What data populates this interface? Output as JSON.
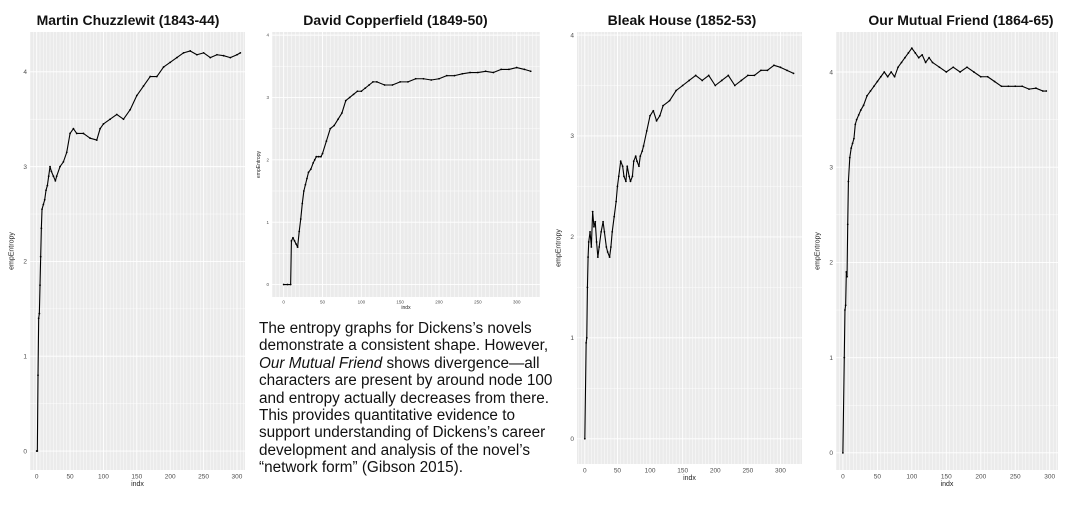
{
  "caption": {
    "part1": "The entropy graphs for Dickens’s novels demonstrate a consistent shape. However, ",
    "italic": "Our Mutual Friend",
    "part2": " shows divergence—all characters are present by around node 100 and entropy actually decreases from there. This provides quantitative evidence to support understanding of Dickens’s career development and analysis of the novel’s “network form” (Gibson 2015)."
  },
  "style": {
    "panel_bg": "#ebebeb",
    "grid": "#ffffff",
    "line": "#000000",
    "tick_text": "#4d4d4d"
  },
  "chart_data": [
    {
      "type": "line",
      "title": "Martin Chuzzlewit (1843-44)",
      "xlabel": "indx",
      "ylabel": "empEntropy",
      "xlim": [
        -10,
        312
      ],
      "ylim": [
        -0.2,
        4.42
      ],
      "xticks": [
        0,
        50,
        100,
        150,
        200,
        250,
        300
      ],
      "yticks": [
        0,
        1,
        2,
        3,
        4
      ],
      "grid": true,
      "series": [
        {
          "x": [
            0,
            1,
            2,
            3,
            4,
            5,
            6,
            7,
            8,
            10,
            12,
            14,
            16,
            18,
            20,
            22,
            25,
            28,
            30,
            35,
            40,
            45,
            50,
            55,
            60,
            70,
            80,
            90,
            95,
            100,
            110,
            120,
            130,
            140,
            150,
            160,
            170,
            180,
            190,
            200,
            210,
            220,
            230,
            240,
            250,
            260,
            270,
            280,
            290,
            300,
            305
          ],
          "y": [
            0,
            0,
            0.8,
            1.4,
            1.45,
            1.75,
            2.05,
            2.35,
            2.55,
            2.6,
            2.65,
            2.75,
            2.8,
            2.9,
            3.0,
            2.95,
            2.9,
            2.85,
            2.9,
            3.0,
            3.05,
            3.15,
            3.35,
            3.4,
            3.35,
            3.35,
            3.3,
            3.28,
            3.4,
            3.45,
            3.5,
            3.55,
            3.5,
            3.6,
            3.75,
            3.85,
            3.95,
            3.95,
            4.05,
            4.1,
            4.15,
            4.2,
            4.22,
            4.18,
            4.2,
            4.15,
            4.18,
            4.17,
            4.15,
            4.18,
            4.2
          ]
        }
      ]
    },
    {
      "type": "line",
      "title": "David Copperfield (1849-50)",
      "xlabel": "indx",
      "ylabel": "empEntropy",
      "xlim": [
        -15,
        330
      ],
      "ylim": [
        -0.2,
        4.05
      ],
      "xticks": [
        0,
        50,
        100,
        150,
        200,
        250,
        300
      ],
      "yticks": [
        0,
        1,
        2,
        3,
        4
      ],
      "grid": true,
      "series": [
        {
          "x": [
            0,
            5,
            9,
            10,
            12,
            14,
            16,
            18,
            20,
            22,
            24,
            26,
            28,
            30,
            32,
            35,
            38,
            40,
            42,
            45,
            48,
            50,
            55,
            60,
            65,
            70,
            75,
            80,
            85,
            90,
            95,
            100,
            105,
            110,
            115,
            120,
            130,
            140,
            150,
            160,
            170,
            180,
            190,
            200,
            210,
            220,
            230,
            240,
            250,
            260,
            270,
            280,
            290,
            300,
            310,
            318
          ],
          "y": [
            0,
            0,
            0,
            0.7,
            0.75,
            0.7,
            0.65,
            0.6,
            0.85,
            1.05,
            1.3,
            1.5,
            1.6,
            1.7,
            1.8,
            1.85,
            1.95,
            2.0,
            2.05,
            2.05,
            2.05,
            2.1,
            2.3,
            2.5,
            2.55,
            2.65,
            2.75,
            2.95,
            3.0,
            3.05,
            3.1,
            3.1,
            3.15,
            3.2,
            3.25,
            3.25,
            3.2,
            3.2,
            3.25,
            3.25,
            3.3,
            3.3,
            3.28,
            3.3,
            3.35,
            3.35,
            3.38,
            3.4,
            3.4,
            3.42,
            3.4,
            3.45,
            3.45,
            3.48,
            3.45,
            3.42
          ]
        }
      ]
    },
    {
      "type": "line",
      "title": "Bleak House (1852-53)",
      "xlabel": "indx",
      "ylabel": "empEntropy",
      "xlim": [
        -12,
        333
      ],
      "ylim": [
        -0.25,
        4.03
      ],
      "xticks": [
        0,
        50,
        100,
        150,
        200,
        250,
        300
      ],
      "yticks": [
        0,
        1,
        2,
        3,
        4
      ],
      "grid": true,
      "series": [
        {
          "x": [
            0,
            2,
            3,
            4,
            5,
            6,
            8,
            10,
            12,
            14,
            16,
            18,
            20,
            22,
            25,
            28,
            30,
            33,
            35,
            38,
            40,
            42,
            45,
            48,
            50,
            52,
            55,
            58,
            60,
            63,
            65,
            68,
            70,
            73,
            75,
            78,
            80,
            83,
            85,
            88,
            90,
            95,
            100,
            105,
            110,
            115,
            120,
            130,
            140,
            150,
            160,
            170,
            180,
            190,
            200,
            210,
            220,
            230,
            240,
            250,
            260,
            270,
            280,
            290,
            300,
            310,
            320
          ],
          "y": [
            0,
            0.95,
            1.0,
            1.5,
            1.8,
            1.95,
            2.05,
            1.9,
            2.25,
            2.1,
            2.15,
            1.95,
            1.8,
            1.9,
            2.05,
            2.15,
            2.05,
            1.9,
            1.85,
            1.8,
            1.9,
            2.05,
            2.2,
            2.35,
            2.5,
            2.6,
            2.75,
            2.7,
            2.6,
            2.55,
            2.7,
            2.6,
            2.55,
            2.6,
            2.75,
            2.8,
            2.75,
            2.7,
            2.8,
            2.85,
            2.9,
            3.05,
            3.2,
            3.25,
            3.15,
            3.2,
            3.3,
            3.35,
            3.45,
            3.5,
            3.55,
            3.6,
            3.55,
            3.6,
            3.5,
            3.55,
            3.6,
            3.5,
            3.55,
            3.6,
            3.6,
            3.65,
            3.65,
            3.7,
            3.68,
            3.65,
            3.62
          ]
        }
      ]
    },
    {
      "type": "line",
      "title": "Our Mutual Friend (1864-65)",
      "xlabel": "indx",
      "ylabel": "empEntropy",
      "xlim": [
        -10,
        312
      ],
      "ylim": [
        -0.18,
        4.42
      ],
      "xticks": [
        0,
        50,
        100,
        150,
        200,
        250,
        300
      ],
      "yticks": [
        0,
        1,
        2,
        3,
        4
      ],
      "grid": true,
      "series": [
        {
          "x": [
            0,
            2,
            3,
            4,
            5,
            6,
            7,
            8,
            10,
            12,
            14,
            16,
            18,
            20,
            23,
            26,
            30,
            35,
            40,
            45,
            50,
            55,
            60,
            65,
            70,
            75,
            80,
            85,
            90,
            95,
            100,
            105,
            110,
            115,
            120,
            125,
            130,
            140,
            150,
            160,
            170,
            180,
            190,
            200,
            210,
            220,
            230,
            240,
            250,
            260,
            270,
            280,
            290,
            295
          ],
          "y": [
            0,
            1.0,
            1.5,
            1.55,
            1.9,
            1.85,
            2.4,
            2.85,
            3.1,
            3.2,
            3.25,
            3.3,
            3.45,
            3.5,
            3.55,
            3.6,
            3.65,
            3.75,
            3.8,
            3.85,
            3.9,
            3.95,
            4.0,
            3.95,
            4.0,
            3.95,
            4.05,
            4.1,
            4.15,
            4.2,
            4.25,
            4.2,
            4.15,
            4.18,
            4.1,
            4.15,
            4.1,
            4.05,
            4.0,
            4.05,
            4.0,
            4.05,
            4.0,
            3.95,
            3.95,
            3.9,
            3.85,
            3.85,
            3.85,
            3.85,
            3.82,
            3.83,
            3.8,
            3.8
          ]
        }
      ]
    }
  ]
}
